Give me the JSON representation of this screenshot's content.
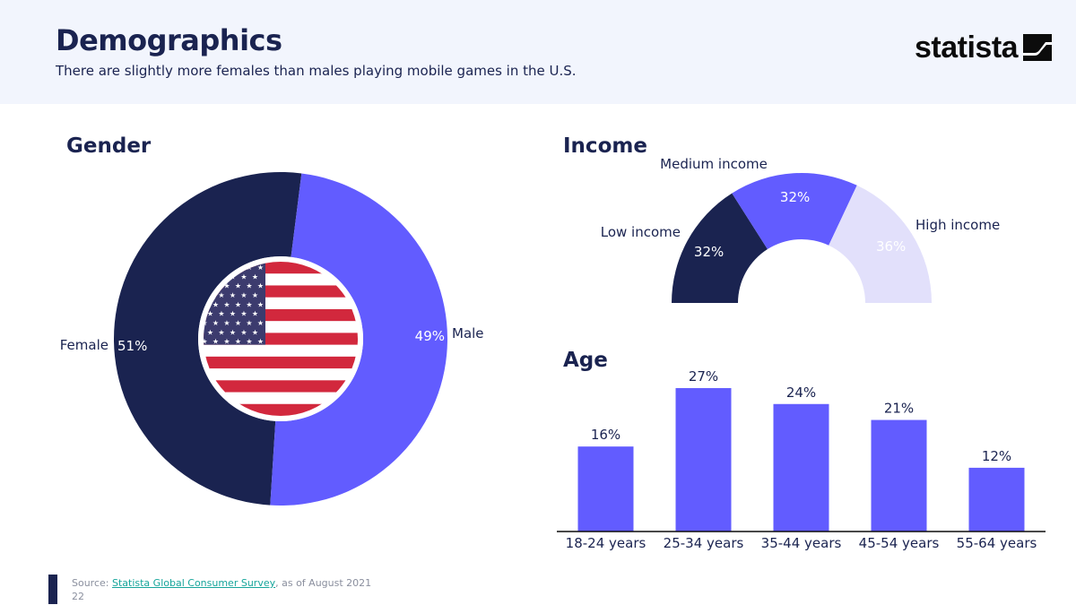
{
  "header": {
    "title": "Demographics",
    "subtitle": "There are slightly more females than males playing mobile games in the U.S.",
    "brand": "statista"
  },
  "sections": {
    "gender": "Gender",
    "income": "Income",
    "age": "Age"
  },
  "chart_data": [
    {
      "type": "pie",
      "title": "Gender",
      "categories": [
        "Female",
        "Male"
      ],
      "values": [
        51,
        49
      ],
      "value_labels": [
        "51%",
        "49%"
      ],
      "colors": [
        "#1a2350",
        "#625cff"
      ],
      "center_icon": "us-flag"
    },
    {
      "type": "pie",
      "title": "Income",
      "categories": [
        "Low income",
        "Medium income",
        "High income"
      ],
      "values": [
        32,
        32,
        36
      ],
      "value_labels": [
        "32%",
        "32%",
        "36%"
      ],
      "colors": [
        "#1a2350",
        "#625cff",
        "#e2e0fb"
      ]
    },
    {
      "type": "bar",
      "title": "Age",
      "categories": [
        "18-24 years",
        "25-34 years",
        "35-44 years",
        "45-54 years",
        "55-64 years"
      ],
      "values": [
        16,
        27,
        24,
        21,
        12
      ],
      "value_labels": [
        "16%",
        "27%",
        "24%",
        "21%",
        "12%"
      ],
      "ylim": [
        0,
        30
      ],
      "color": "#625cff"
    }
  ],
  "footer": {
    "source_prefix": "Source: ",
    "source_link": "Statista Global Consumer Survey",
    "source_suffix": ", as of August 2021",
    "page_number": "22"
  }
}
